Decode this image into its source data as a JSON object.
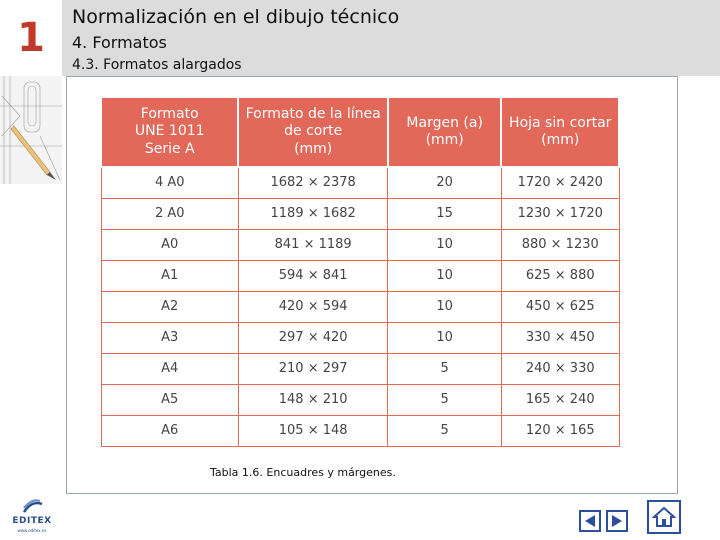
{
  "header": {
    "chapter_number": "1",
    "title": "Normalización en el dibujo técnico",
    "subtitle": "4. Formatos",
    "section": "4.3. Formatos alargados"
  },
  "table": {
    "headers": [
      [
        "Formato",
        "UNE 1011",
        "Serie A"
      ],
      [
        "Formato de la línea",
        "de corte",
        "(mm)"
      ],
      [
        "Margen (a)",
        "(mm)"
      ],
      [
        "Hoja sin cortar",
        "(mm)"
      ]
    ],
    "rows": [
      [
        "4 A0",
        "1682 × 2378",
        "20",
        "1720 × 2420"
      ],
      [
        "2 A0",
        "1189 × 1682",
        "15",
        "1230 × 1720"
      ],
      [
        "A0",
        "841 × 1189",
        "10",
        "880 × 1230"
      ],
      [
        "A1",
        "594 × 841",
        "10",
        "625 × 880"
      ],
      [
        "A2",
        "420 × 594",
        "10",
        "450 × 625"
      ],
      [
        "A3",
        "297 × 420",
        "10",
        "330 × 450"
      ],
      [
        "A4",
        "210 × 297",
        "5",
        "240 × 330"
      ],
      [
        "A5",
        "148 × 210",
        "5",
        "165 × 240"
      ],
      [
        "A6",
        "105 × 148",
        "5",
        "120 × 165"
      ]
    ]
  },
  "caption": "Tabla 1.6. Encuadres y márgenes.",
  "logo": {
    "name": "EDITEX",
    "url": "www.editex.es"
  },
  "icons": {
    "prev": "triangle-left-icon",
    "next": "triangle-right-icon",
    "home": "house-icon"
  },
  "colors": {
    "accent": "#e2695a",
    "chapter": "#c0392b",
    "nav": "#2b4f9e",
    "header_bg": "#dcdcdc"
  }
}
